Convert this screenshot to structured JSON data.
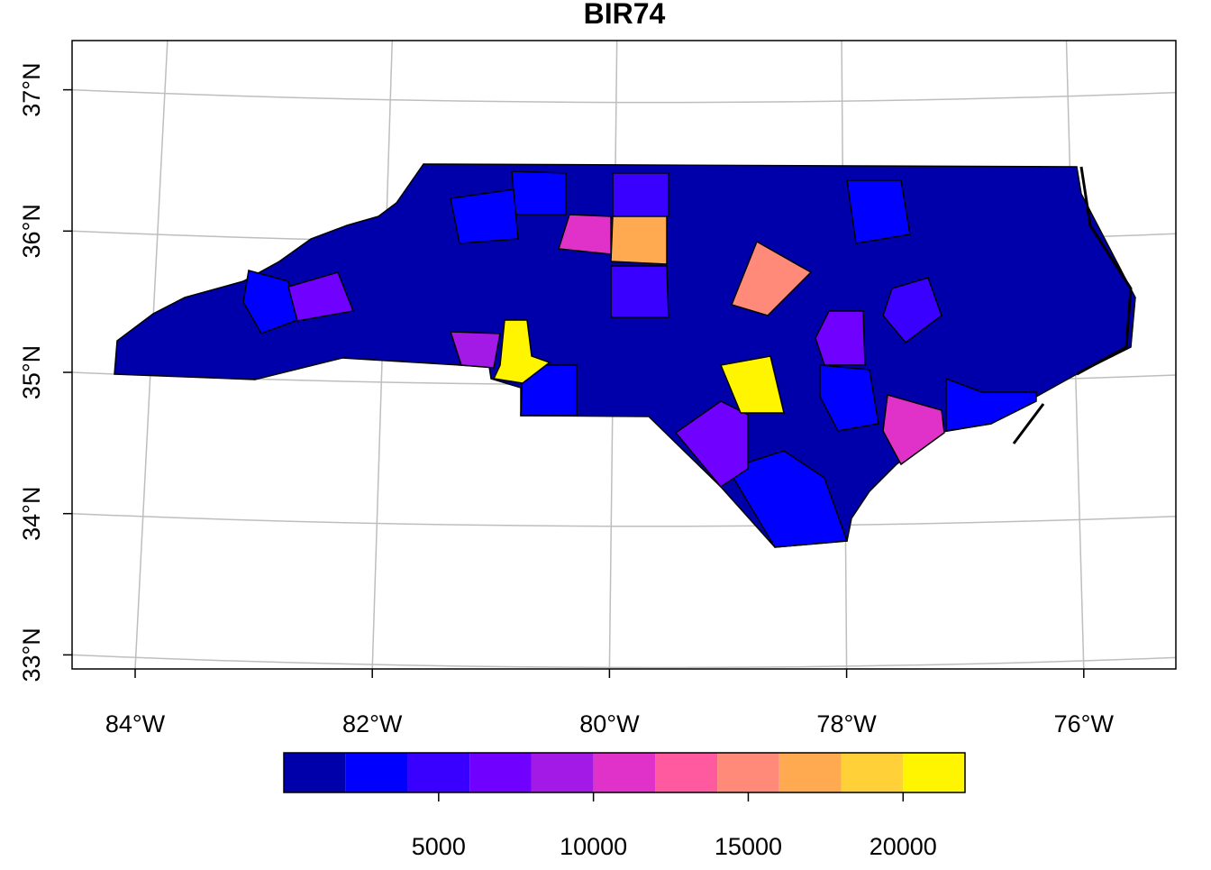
{
  "chart_data": {
    "type": "map",
    "title": "BIR74",
    "xticks": [
      {
        "value": -84,
        "label": "84°W"
      },
      {
        "value": -82,
        "label": "82°W"
      },
      {
        "value": -80,
        "label": "80°W"
      },
      {
        "value": -78,
        "label": "78°W"
      },
      {
        "value": -76,
        "label": "76°W"
      }
    ],
    "yticks": [
      {
        "value": 33,
        "label": "33°N"
      },
      {
        "value": 34,
        "label": "34°N"
      },
      {
        "value": 35,
        "label": "35°N"
      },
      {
        "value": 36,
        "label": "36°N"
      },
      {
        "value": 37,
        "label": "37°N"
      }
    ],
    "grid": true,
    "legend": {
      "breaks": [
        0,
        2000,
        4000,
        6000,
        8000,
        10000,
        12000,
        14000,
        16000,
        18000,
        20000,
        22000
      ],
      "colors": [
        "#0000AA",
        "#0000FF",
        "#3A00FF",
        "#7000FF",
        "#A31AE6",
        "#E032C8",
        "#FF5AA0",
        "#FF8A7A",
        "#FFAA50",
        "#FFD038",
        "#FFF500"
      ],
      "ticks": [
        5000,
        10000,
        15000,
        20000
      ]
    }
  }
}
